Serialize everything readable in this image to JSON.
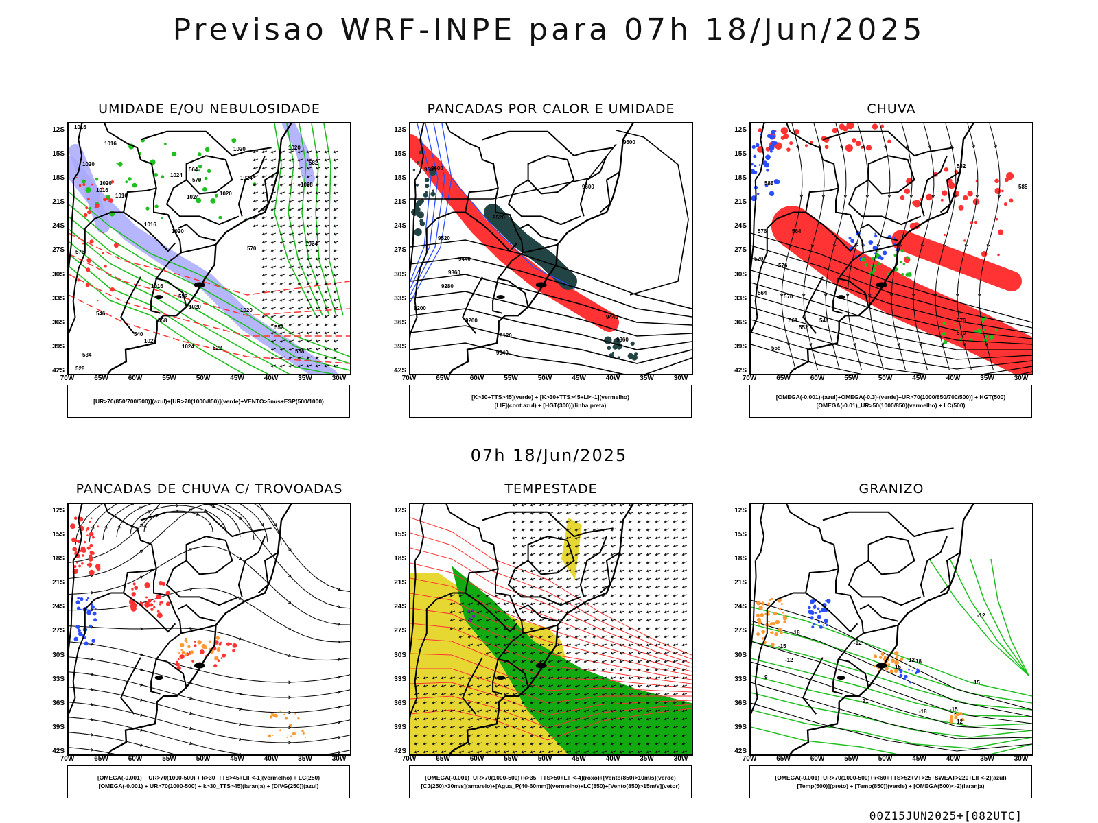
{
  "title": "Previsao WRF-INPE  para 07h 18/Jun/2025",
  "mid_date": "07h 18/Jun/2025",
  "footer": "00Z15JUN2025+[082UTC]",
  "lat_labels": [
    "12S",
    "15S",
    "18S",
    "21S",
    "24S",
    "27S",
    "30S",
    "33S",
    "36S",
    "39S",
    "42S"
  ],
  "lon_labels": [
    "70W",
    "65W",
    "60W",
    "55W",
    "50W",
    "45W",
    "40W",
    "35W",
    "30W"
  ],
  "colors": {
    "humid_blue": "#a9a9ff",
    "green": "#1fbf1f",
    "red": "#ff3333",
    "orange": "#ff9933",
    "blue": "#2a4dff",
    "dark_teal": "#224444",
    "yellow": "#e6d733",
    "dark_green": "#11aa11"
  },
  "panels": [
    {
      "id": "umidade",
      "title": "UMIDADE E/OU NEBULOSIDADE",
      "legend": [
        "[UR>70(850/700/500)](azul)+[UR>70(1000/850)](verde)+VENTO>5m/s+ESP(500/1000)"
      ],
      "contour_labels": [
        "1016",
        "1016",
        "1020",
        "1020",
        "1016",
        "1016",
        "1024",
        "1024",
        "1020",
        "1024",
        "1020",
        "1016",
        "1020",
        "1028",
        "1024",
        "1020",
        "1020",
        "1028",
        "1024",
        "1020",
        "1016",
        "564",
        "570",
        "570",
        "576",
        "552",
        "558",
        "540",
        "546",
        "534",
        "528",
        "522",
        "552",
        "558",
        "582"
      ]
    },
    {
      "id": "pancadas-calor",
      "title": "PANCADAS POR CALOR E UMIDADE",
      "legend": [
        "[K>30+TTS>45](verde) + [K>30+TTS>45+LI<-1](vermelho)",
        "[LIF](cont.azul) + [HGT(300)](linha preta)"
      ],
      "contour_labels": [
        "9600",
        "9600",
        "9600",
        "9600",
        "9520",
        "9520",
        "9440",
        "9360",
        "9280",
        "9200",
        "9200",
        "9120",
        "9040",
        "9440",
        "9360"
      ]
    },
    {
      "id": "chuva",
      "title": "CHUVA",
      "legend": [
        "[OMEGA(-0.001)-(azul)+OMEGA(-0.3)-(verde)+UR>70(1000/850/700/500)] + HGT(500)",
        "[OMEGA(-0.01)_UR>50(1000/850)(vermelho) + LC(500)"
      ],
      "contour_labels": [
        "582",
        "588",
        "576",
        "570",
        "564",
        "576",
        "570",
        "561",
        "558",
        "552",
        "546",
        "576",
        "570",
        "564",
        "585"
      ]
    },
    {
      "id": "pancadas-trovoadas",
      "title": "PANCADAS DE CHUVA C/ TROVOADAS",
      "legend": [
        "[OMEGA(-0.001) + UR>70(1000-500) + k>30_TTS>45+LIF<-1](vermelho) + LC(250)",
        "[OMEGA(-0.001) + UR>70(1000-500) + k>30_TTS>45](laranja) + [DIVG(250)](azul)"
      ],
      "contour_labels": []
    },
    {
      "id": "tempestade",
      "title": "TEMPESTADE",
      "legend": [
        "[OMEGA(-0.001)+UR>70(1000-500)+k>35_TTS>50+LIF<-4](roxo)+[Vento(850)>10m/s](verde)",
        "[CJ(250)>30m/s](amarelo)+[Agua_P(40-60mm)](vermelho)+LC(850)+[Vento(850)>15m/s](vetor)"
      ],
      "contour_labels": []
    },
    {
      "id": "granizo",
      "title": "GRANIZO",
      "legend": [
        "[OMEGA(-0.001)+UR>70(1000-500)+k<60+TTS>52+VT>25+SWEAT>220+LIF<-2](azul)",
        "[Temp(500)](preto) + [Temp(850)](verde) + [OMEGA(500)<-2](laranja)"
      ],
      "contour_labels": [
        "-12",
        "-12",
        "-15",
        "-18",
        "-21",
        "-18",
        "-15",
        "-12",
        "12",
        "15",
        "18",
        "15",
        "12",
        "9"
      ]
    }
  ]
}
